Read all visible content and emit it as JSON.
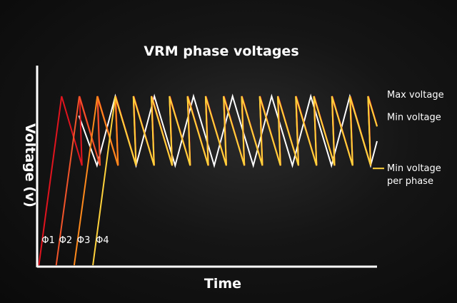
{
  "chart_data": {
    "type": "line",
    "title": "VRM phase voltages",
    "xlabel": "Time",
    "ylabel": "Voltage (v)",
    "xlim": [
      0,
      100
    ],
    "ylim": [
      0,
      100
    ],
    "grid": false,
    "levels": {
      "max_voltage": 100,
      "min_voltage": 88.5,
      "min_voltage_per_phase": 59
    },
    "series": [
      {
        "name": "Φ1",
        "color": "#e1141e",
        "start": 0.5,
        "period": 5.31,
        "values": [
          [
            0.5,
            0
          ],
          [
            7.2,
            100
          ],
          [
            13.2,
            59
          ]
        ]
      },
      {
        "name": "Φ2",
        "color": "#f2542a",
        "start": 5.6,
        "period": 5.31,
        "values": [
          [
            5.6,
            0
          ],
          [
            12.4,
            100
          ],
          [
            18.5,
            59
          ]
        ]
      },
      {
        "name": "Φ3",
        "color": "#ff8a1c",
        "start": 10.9,
        "period": 5.31,
        "values": [
          [
            10.9,
            0
          ],
          [
            17.7,
            100
          ],
          [
            23.8,
            59
          ]
        ]
      },
      {
        "name": "Φ4",
        "color": "#ffd23c",
        "start": 16.4,
        "period": 5.31,
        "values": [
          [
            16.4,
            0
          ],
          [
            23.0,
            100
          ],
          [
            29.1,
            59
          ]
        ]
      }
    ],
    "sum_series": {
      "color": "#ffffff",
      "values": [
        [
          12.3,
          88.5
        ],
        [
          17.6,
          59
        ],
        [
          23.0,
          100
        ],
        [
          29.1,
          59
        ]
      ]
    },
    "annotations": [
      {
        "text": "Max voltage",
        "level": "max_voltage"
      },
      {
        "text": "Min voltage",
        "level": "min_voltage"
      },
      {
        "text": "Min voltage",
        "level": "min_voltage_per_phase"
      },
      {
        "text": "per phase",
        "level": "min_voltage_per_phase"
      }
    ]
  }
}
